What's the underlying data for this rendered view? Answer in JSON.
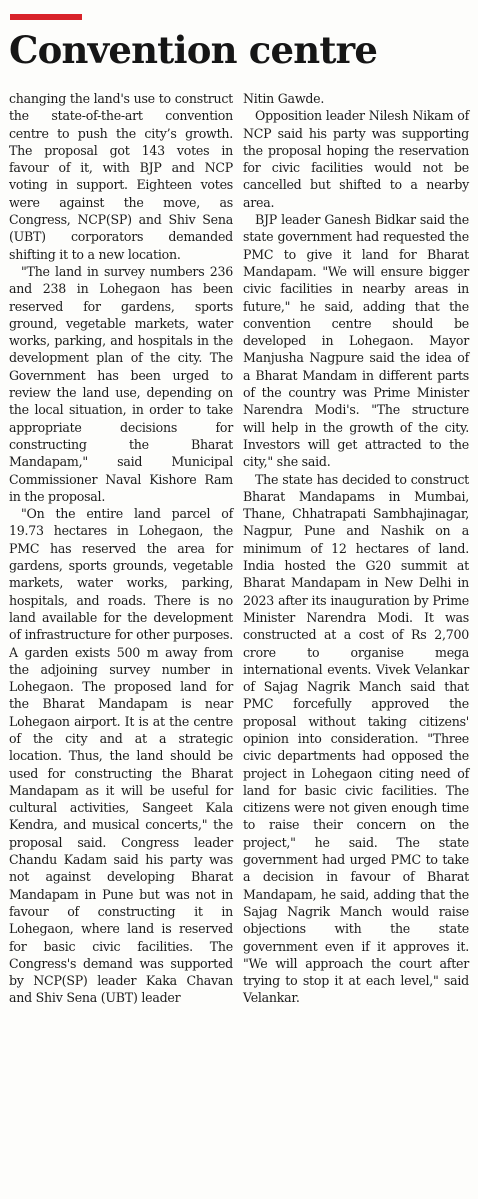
{
  "article": {
    "headline": "Convention centre",
    "left_column": [
      "changing the land's use to construct the state-of-the-art convention centre to push the city’s growth. The proposal got 143 votes in favour of it, with BJP and NCP voting in support. Eighteen votes were against the move, as Congress, NCP(SP) and Shiv Sena (UBT) corporators demanded shifting it to a new location.",
      "\"The land in survey numbers 236 and 238 in Lohegaon has been reserved for gardens, sports ground, vegetable markets, water works, parking, and hospitals in the development plan of the city. The Government has been urged to review the land use, depending on the local situation, in order to take appropriate decisions for constructing the Bharat Mandapam,\" said Municipal Commissioner Naval Kishore Ram in the proposal.",
      "\"On the entire land parcel of 19.73 hectares in Lohegaon, the PMC has reserved the area for gardens, sports grounds, vegetable markets, water works, parking, hospitals, and roads. There is no land available for the development of infrastructure for other purposes. A garden exists 500 m away from the adjoining survey number in Lohegaon. The proposed land for the Bharat Mandapam is near Lohegaon airport. It is at the centre of the city and at a strategic location. Thus, the land should be used for constructing the Bharat Mandapam as it will be useful for cultural activities, Sangeet Kala Kendra, and musical concerts,\" the proposal said. Congress leader Chandu Kadam said his party was not against developing Bharat Mandapam in Pune but was not in favour of constructing it in Lohegaon, where land is reserved for basic civic facilities. The Congress's demand was supported by NCP(SP) leader Kaka Chavan and Shiv Sena (UBT) leader"
    ],
    "right_column": [
      "Nitin Gawde.",
      "Opposition leader Nilesh Nikam of NCP said his party was supporting the proposal hoping the reservation for civic facilities would not be cancelled but shifted to a nearby area.",
      "BJP leader Ganesh Bidkar said the state government had requested the PMC to give it land for Bharat Mandapam. \"We will ensure bigger civic facilities in nearby areas in future,\" he said, adding that the convention centre should be developed in Lohegaon. Mayor Manjusha Nagpure said the idea of a Bharat Mandam in different parts of the country was Prime Minister Narendra Modi's. \"The structure will help in the growth of the city. Investors will get attracted to the city,\" she said.",
      "The state has decided to construct Bharat Mandapams in Mumbai, Thane, Chhatrapati Sambhajinagar, Nagpur, Pune and Nashik on a minimum of 12 hectares of land. India hosted the G20 summit at Bharat Mandapam in New Delhi in 2023 after its inauguration by Prime Minister Narendra Modi. It was constructed at a cost of Rs 2,700 crore to organise mega international events. Vivek Velankar of Sajag Nagrik Manch said that PMC forcefully approved the proposal without taking citizens' opinion into consideration. \"Three civic departments had opposed the project in Lohegaon citing need of land for basic civic facilities. The citizens were not given enough time to raise their concern on the project,\" he said. The state government had urged PMC to take a decision in favour of Bharat Mandapam, he said, adding that the Sajag Nagrik Manch would raise objections with the state government even if it approves it. \"We will approach the court after trying to stop it at each level,\" said Velankar."
    ]
  },
  "colors": {
    "accent": "#d8232a",
    "text": "#1b1b1b",
    "background": "#fdfdfb"
  }
}
